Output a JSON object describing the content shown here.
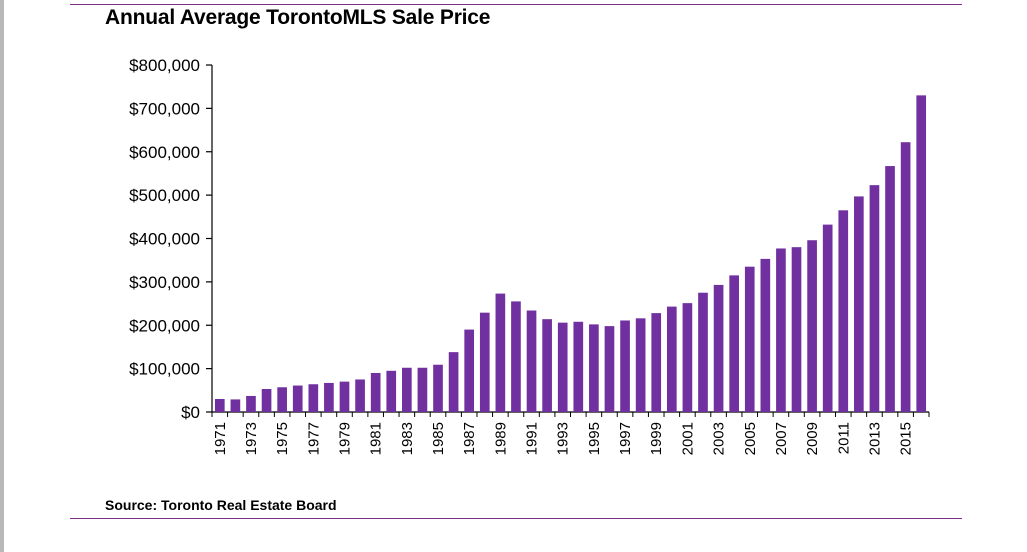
{
  "chart_data": {
    "type": "bar",
    "title": "Annual Average TorontoMLS Sale Price",
    "source": "Source: Toronto Real Estate Board",
    "xlabel": "",
    "ylabel": "",
    "ylim": [
      0,
      800000
    ],
    "ytick_values": [
      0,
      100000,
      200000,
      300000,
      400000,
      500000,
      600000,
      700000,
      800000
    ],
    "ytick_labels": [
      "$0",
      "$100,000",
      "$200,000",
      "$300,000",
      "$400,000",
      "$500,000",
      "$600,000",
      "$700,000",
      "$800,000"
    ],
    "x_label_every": 2,
    "bar_color": "#7030a0",
    "categories": [
      "1971",
      "1972",
      "1973",
      "1974",
      "1975",
      "1976",
      "1977",
      "1978",
      "1979",
      "1980",
      "1981",
      "1982",
      "1983",
      "1984",
      "1985",
      "1986",
      "1987",
      "1988",
      "1989",
      "1990",
      "1991",
      "1992",
      "1993",
      "1994",
      "1995",
      "1996",
      "1997",
      "1998",
      "1999",
      "2000",
      "2001",
      "2002",
      "2003",
      "2004",
      "2005",
      "2006",
      "2007",
      "2008",
      "2009",
      "2010",
      "2011",
      "2012",
      "2013",
      "2014",
      "2015",
      "2016"
    ],
    "values": [
      30000,
      29000,
      37000,
      53000,
      57000,
      61000,
      64000,
      67000,
      70000,
      75000,
      90000,
      95000,
      102000,
      102000,
      109000,
      138000,
      190000,
      229000,
      273000,
      255000,
      234000,
      214000,
      206000,
      208000,
      202000,
      198000,
      211000,
      216000,
      228000,
      243000,
      251000,
      275000,
      293000,
      315000,
      335000,
      353000,
      377000,
      380000,
      396000,
      432000,
      465000,
      497000,
      523000,
      567000,
      622000,
      730000
    ]
  }
}
